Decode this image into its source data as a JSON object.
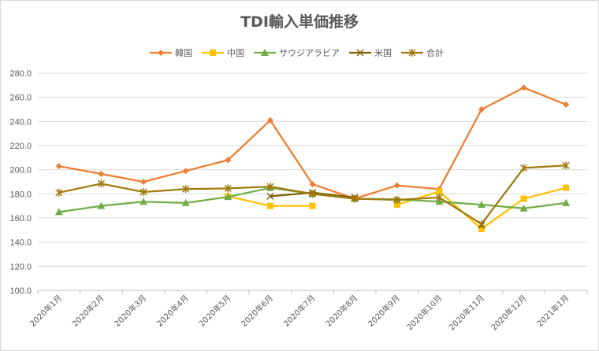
{
  "chart_data": {
    "type": "line",
    "title": "TDI輸入単価推移",
    "xlabel": "",
    "ylabel": "",
    "ylim": [
      100,
      280
    ],
    "yticks": [
      100,
      120,
      140,
      160,
      180,
      200,
      220,
      240,
      260,
      280
    ],
    "ytick_labels": [
      "100.0",
      "120.0",
      "140.0",
      "160.0",
      "180.0",
      "200.0",
      "220.0",
      "240.0",
      "260.0",
      "280.0"
    ],
    "legend_position": "top-center",
    "grid": true,
    "categories": [
      "2020年1月",
      "2020年2月",
      "2020年3月",
      "2020年4月",
      "2020年5月",
      "2020年6月",
      "2020年7月",
      "2020年8月",
      "2020年9月",
      "2020年10月",
      "2020年11月",
      "2020年12月",
      "2021年1月"
    ],
    "series": [
      {
        "name": "韓国",
        "color": "#ED7D31",
        "marker": "diamond",
        "values": [
          203,
          196.5,
          190,
          199,
          208,
          241,
          188,
          176,
          187,
          184,
          250,
          268,
          254
        ]
      },
      {
        "name": "中国",
        "color": "#FFC000",
        "marker": "square",
        "values": [
          null,
          null,
          null,
          null,
          178,
          170,
          170,
          null,
          171,
          182,
          151,
          176,
          185
        ]
      },
      {
        "name": "サウジアラビア",
        "color": "#70AD47",
        "marker": "triangle",
        "values": [
          165,
          170,
          173.5,
          172.5,
          177.5,
          185,
          180,
          176,
          175.5,
          173.5,
          171,
          168,
          172.5
        ]
      },
      {
        "name": "米国",
        "color": "#7F6000",
        "marker": "x",
        "values": [
          null,
          null,
          null,
          null,
          null,
          178,
          181,
          177,
          null,
          null,
          154,
          null,
          null
        ]
      },
      {
        "name": "合計",
        "color": "#A17A0E",
        "marker": "star",
        "values": [
          181,
          188.5,
          181.5,
          184,
          184.5,
          186,
          180,
          176,
          175,
          177,
          155,
          201.5,
          203.5
        ]
      }
    ]
  }
}
